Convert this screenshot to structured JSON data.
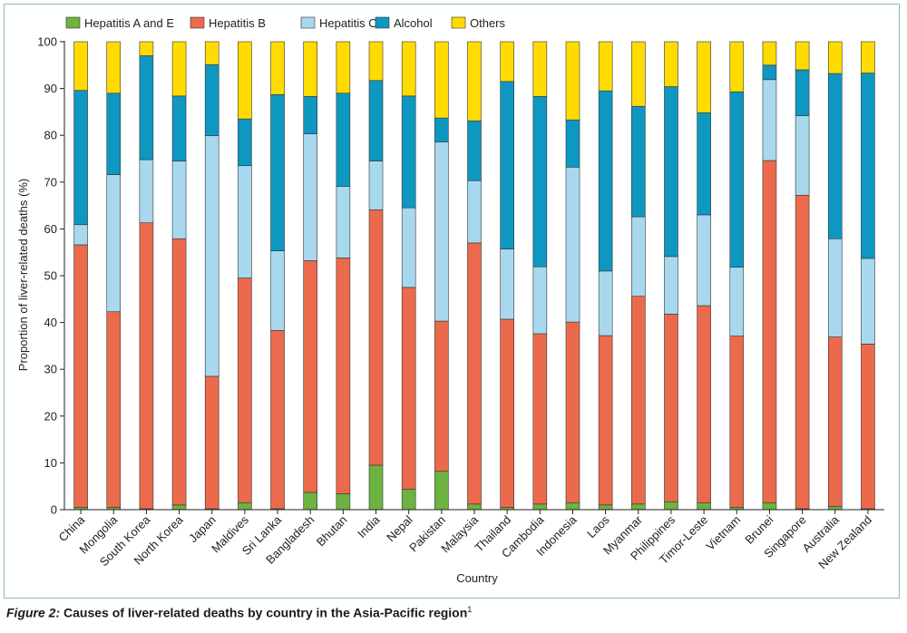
{
  "chart_data": {
    "type": "bar",
    "stacked": true,
    "title": "",
    "xlabel": "Country",
    "ylabel": "Proportion of liver-related deaths (%)",
    "ylim": [
      0,
      100
    ],
    "yticks": [
      0,
      10,
      20,
      30,
      40,
      50,
      60,
      70,
      80,
      90,
      100
    ],
    "grid": false,
    "legend_position": "top",
    "categories": [
      "China",
      "Mongolia",
      "South Korea",
      "North Korea",
      "Japan",
      "Maldives",
      "Sri Lanka",
      "Bangladesh",
      "Bhutan",
      "India",
      "Nepal",
      "Pakistan",
      "Malaysia",
      "Thailand",
      "Cambodia",
      "Indonesia",
      "Laos",
      "Myanmar",
      "Philippines",
      "Timor-Leste",
      "Vietnam",
      "Brunei",
      "Singapore",
      "Australia",
      "New Zealand"
    ],
    "series": [
      {
        "name": "Hepatitis A and E",
        "color": "#6cb33f",
        "values": [
          0.5,
          0.5,
          0.2,
          1.0,
          0.2,
          1.5,
          0.2,
          3.7,
          3.4,
          9.5,
          4.4,
          8.2,
          1.2,
          0.5,
          1.2,
          1.5,
          1.0,
          1.2,
          1.7,
          1.5,
          0.5,
          1.5,
          0.2,
          0.7,
          0.2
        ]
      },
      {
        "name": "Hepatitis B",
        "color": "#ec6a4c",
        "values": [
          56.1,
          41.8,
          61.1,
          56.9,
          28.3,
          48.0,
          38.1,
          49.5,
          50.4,
          54.6,
          43.1,
          32.1,
          55.8,
          40.2,
          36.4,
          38.6,
          36.2,
          44.4,
          40.1,
          42.1,
          36.6,
          73.1,
          67.0,
          36.2,
          35.2
        ]
      },
      {
        "name": "Hepatitis C",
        "color": "#a8d8ee",
        "values": [
          4.3,
          29.3,
          13.5,
          16.6,
          51.4,
          24.0,
          17.0,
          27.1,
          15.3,
          10.4,
          17.0,
          38.3,
          13.3,
          15.0,
          14.3,
          33.1,
          13.8,
          17.0,
          12.3,
          19.4,
          14.7,
          17.3,
          17.0,
          21.0,
          18.3
        ]
      },
      {
        "name": "Alcohol",
        "color": "#0e97c0",
        "values": [
          28.7,
          17.4,
          22.2,
          13.9,
          15.2,
          10.0,
          33.4,
          8.0,
          19.9,
          17.2,
          23.9,
          5.1,
          12.8,
          35.8,
          36.4,
          10.1,
          38.5,
          23.6,
          36.3,
          21.8,
          37.5,
          3.1,
          9.8,
          35.3,
          39.6
        ]
      },
      {
        "name": "Others",
        "color": "#ffdb00",
        "values": [
          10.4,
          11.0,
          3.0,
          11.6,
          4.9,
          16.5,
          11.3,
          11.7,
          11.0,
          8.3,
          11.6,
          16.3,
          16.9,
          8.5,
          11.7,
          16.7,
          10.5,
          13.8,
          9.6,
          15.2,
          10.7,
          5.0,
          6.0,
          6.8,
          6.7
        ]
      }
    ]
  },
  "caption": {
    "figure_label": "Figure 2:",
    "text": " Causes of liver-related deaths by country in the Asia-Pacific region",
    "ref": "1"
  }
}
